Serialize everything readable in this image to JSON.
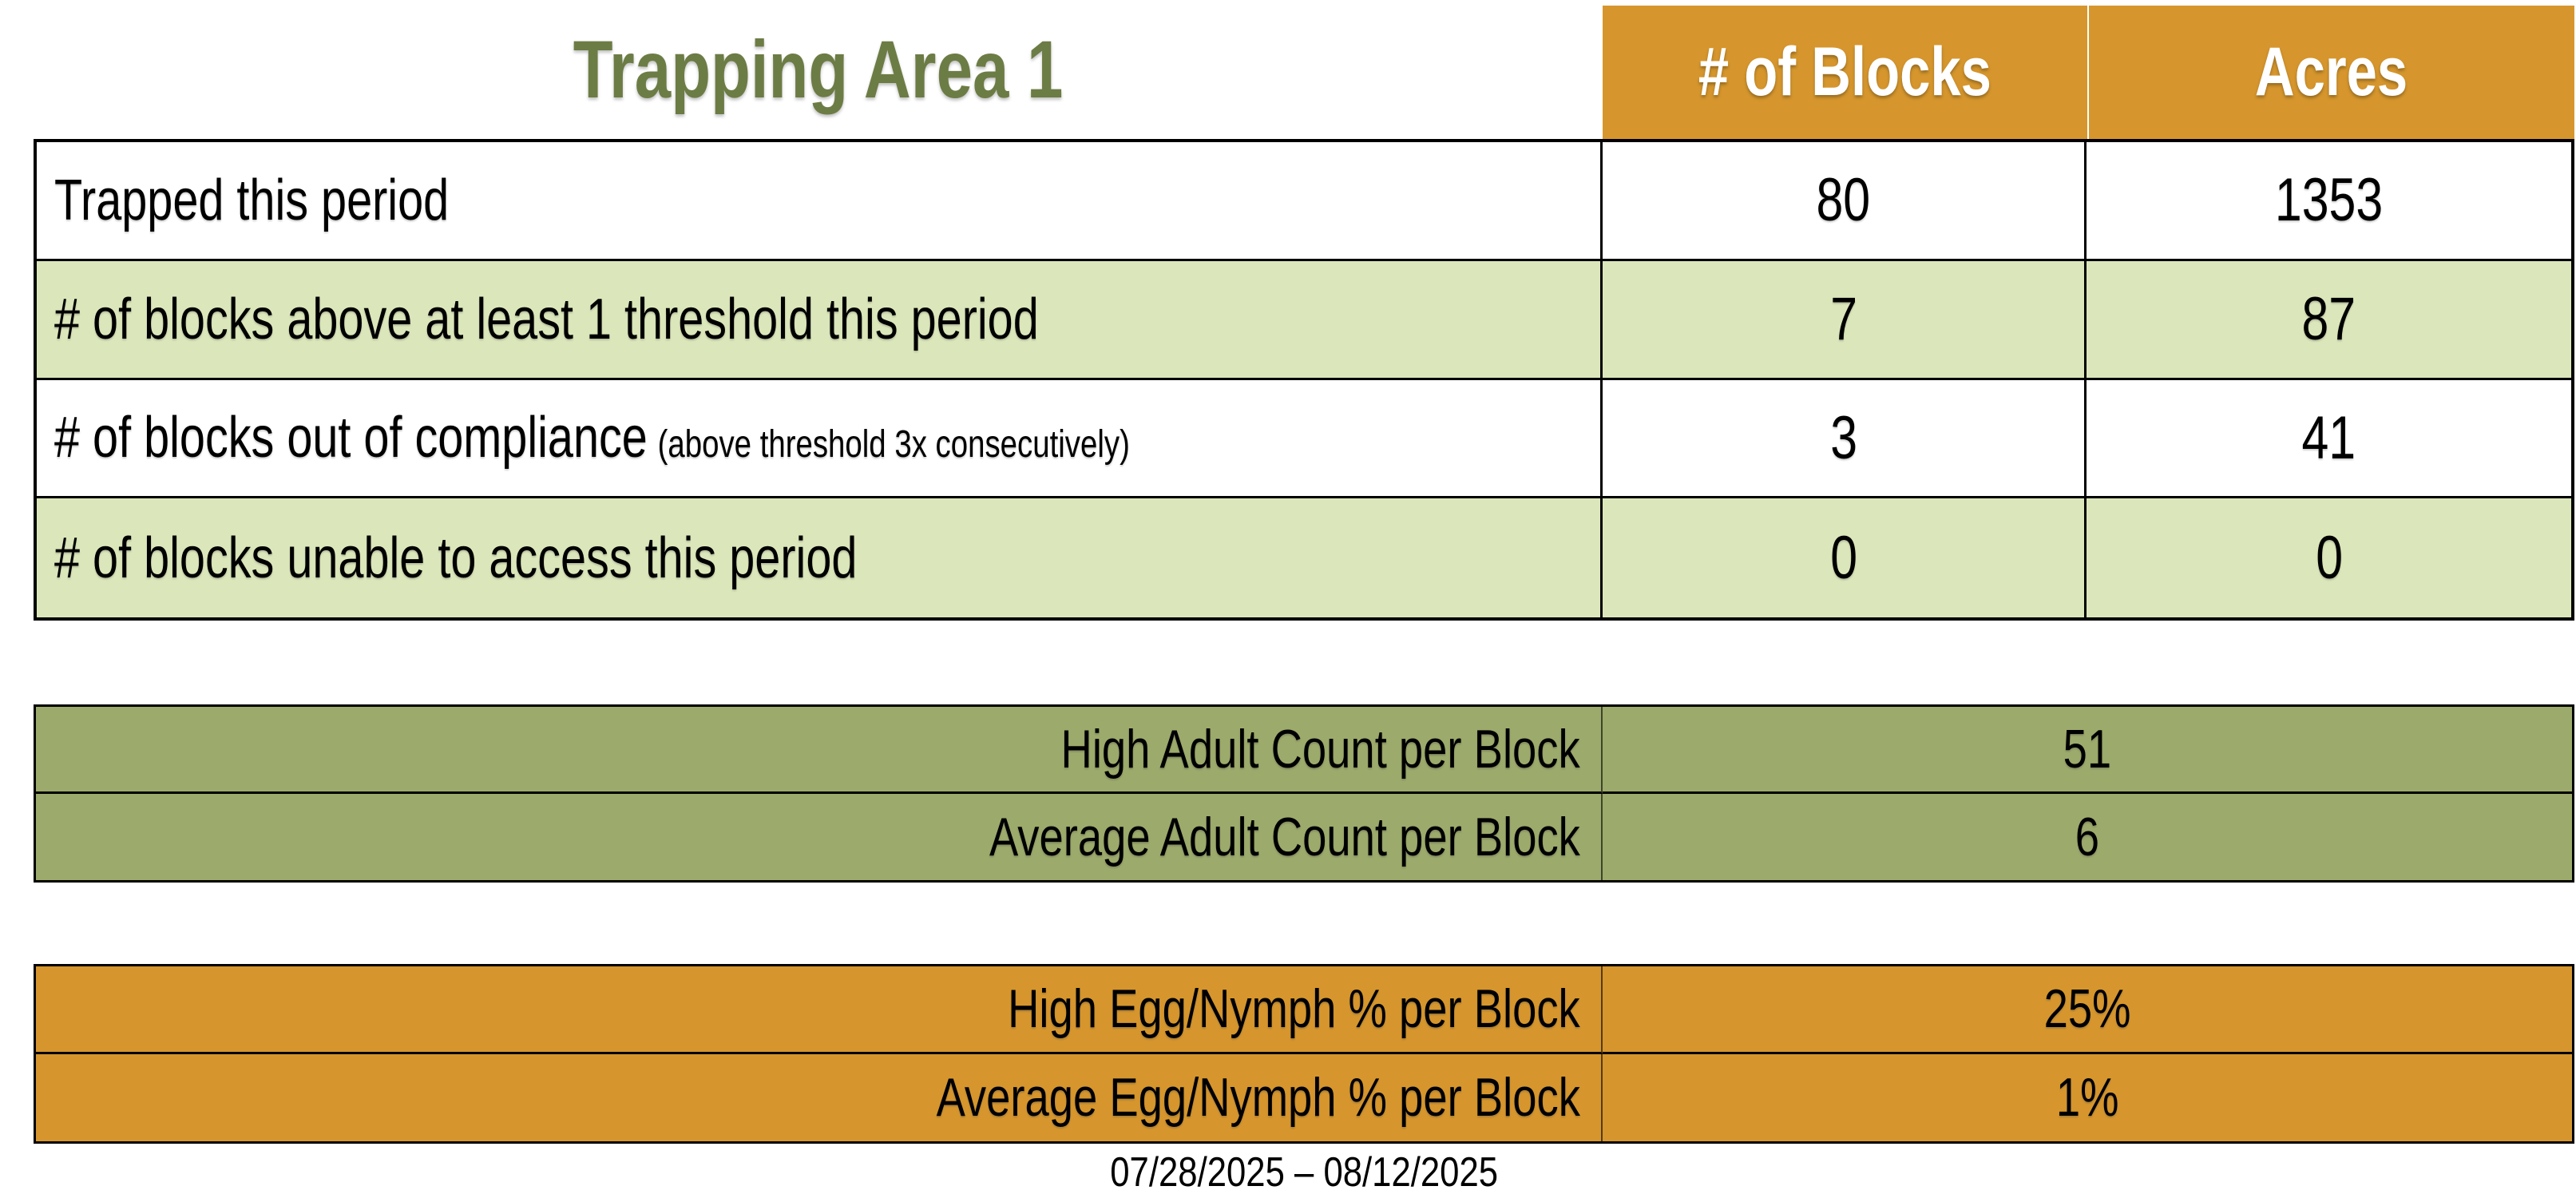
{
  "title": "Trapping Area 1",
  "header": {
    "col_blocks": "# of Blocks",
    "col_acres": "Acres"
  },
  "table1": {
    "rows": [
      {
        "label": "Trapped this period",
        "note": "",
        "blocks": "80",
        "acres": "1353"
      },
      {
        "label": "# of blocks above at least 1 threshold this period",
        "note": "",
        "blocks": "7",
        "acres": "87"
      },
      {
        "label": "# of blocks out of compliance",
        "note": "(above threshold 3x consecutively)",
        "blocks": "3",
        "acres": "41"
      },
      {
        "label": "# of blocks unable to access this period",
        "note": "",
        "blocks": "0",
        "acres": "0"
      }
    ]
  },
  "adult_table": {
    "rows": [
      {
        "label": "High Adult Count per Block",
        "value": "51"
      },
      {
        "label": "Average Adult Count per Block",
        "value": "6"
      }
    ]
  },
  "egg_table": {
    "rows": [
      {
        "label": "High Egg/Nymph % per Block",
        "value": "25%"
      },
      {
        "label": "Average Egg/Nymph % per Block",
        "value": "1%"
      }
    ]
  },
  "footer": {
    "date_range": "07/28/2025 – 08/12/2025"
  },
  "colors": {
    "header_orange": "#D6962D",
    "row_green": "#DBE7BA",
    "adult_olive": "#9CAA6B",
    "title_green": "#6C7C45",
    "border_black": "#000000"
  }
}
